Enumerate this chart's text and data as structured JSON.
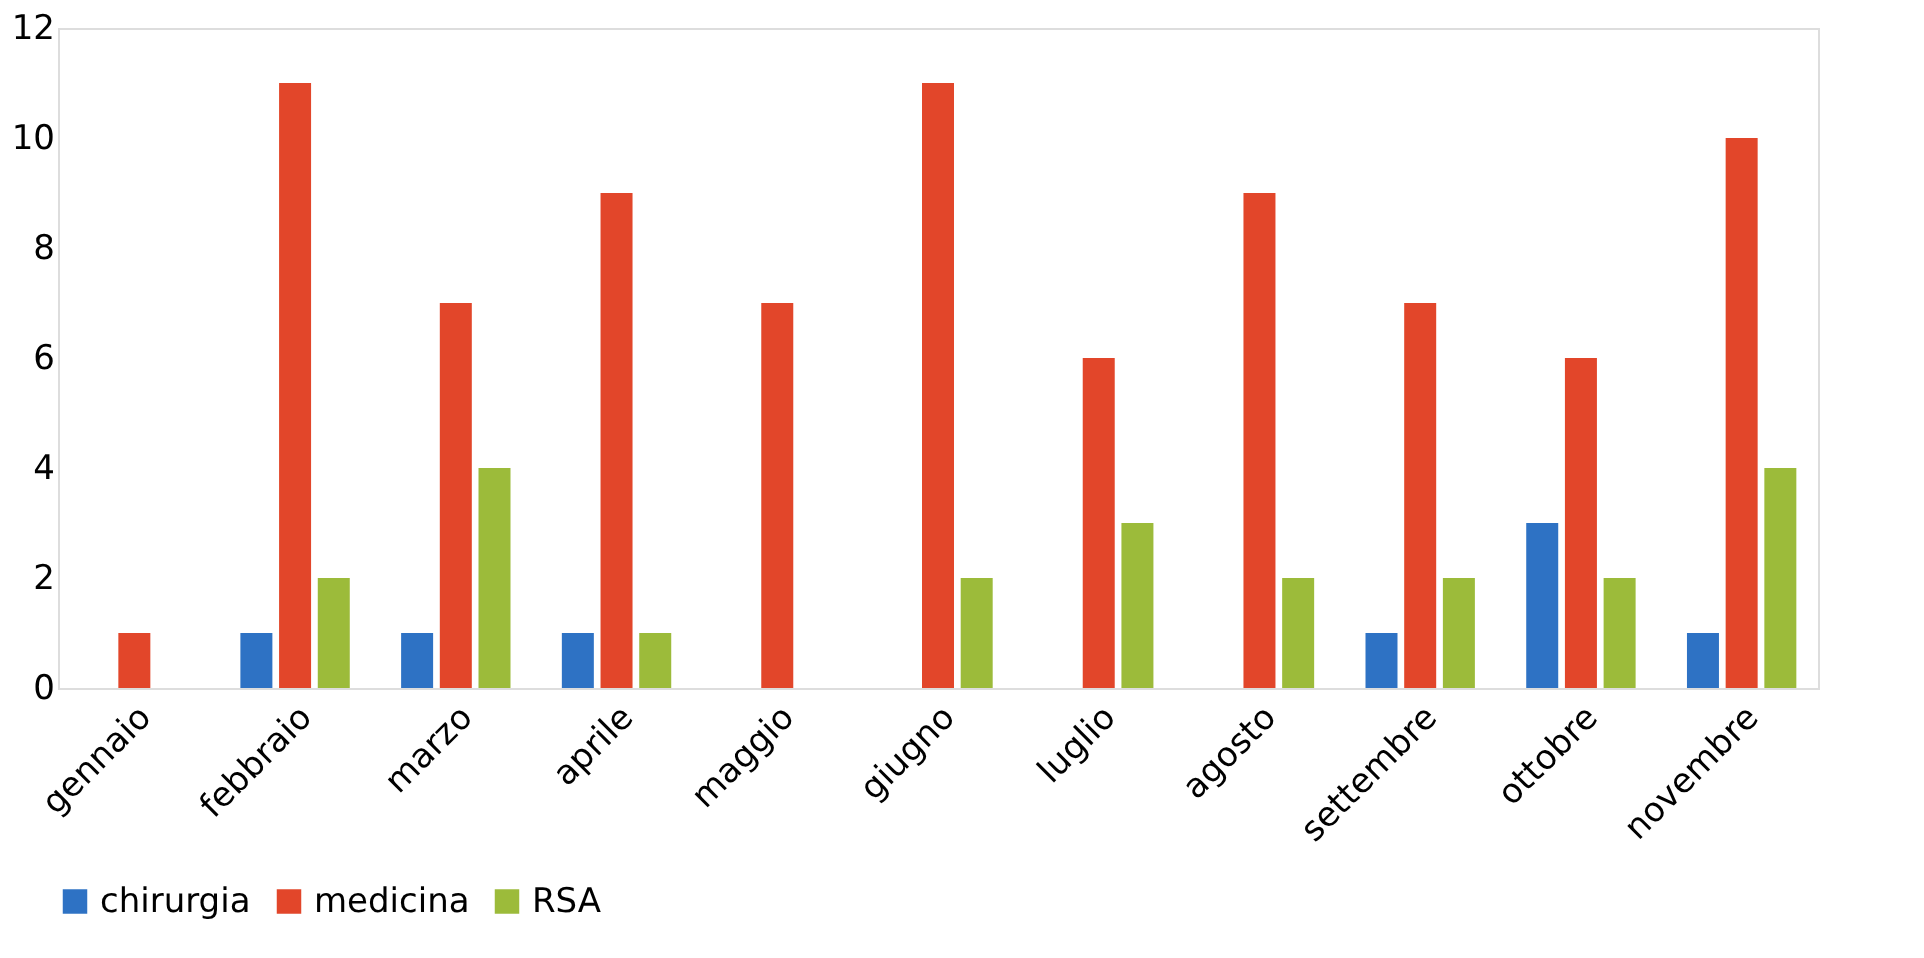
{
  "chart_data": {
    "type": "bar",
    "categories": [
      "gennaio",
      "febbraio",
      "marzo",
      "aprile",
      "maggio",
      "giugno",
      "luglio",
      "agosto",
      "settembre",
      "ottobre",
      "novembre"
    ],
    "series": [
      {
        "name": "chirurgia",
        "color": "#2e72c4",
        "values": [
          0,
          1,
          1,
          1,
          0,
          0,
          0,
          0,
          1,
          3,
          1
        ]
      },
      {
        "name": "medicina",
        "color": "#e2462a",
        "values": [
          1,
          11,
          7,
          9,
          7,
          11,
          6,
          9,
          7,
          6,
          10
        ]
      },
      {
        "name": "RSA",
        "color": "#9cbb3a",
        "values": [
          0,
          2,
          4,
          1,
          0,
          2,
          3,
          2,
          2,
          2,
          4
        ]
      }
    ],
    "ylim": [
      0,
      12
    ],
    "yticks": [
      0,
      2,
      4,
      6,
      8,
      10,
      12
    ],
    "grid": false,
    "legend": "bottom"
  }
}
